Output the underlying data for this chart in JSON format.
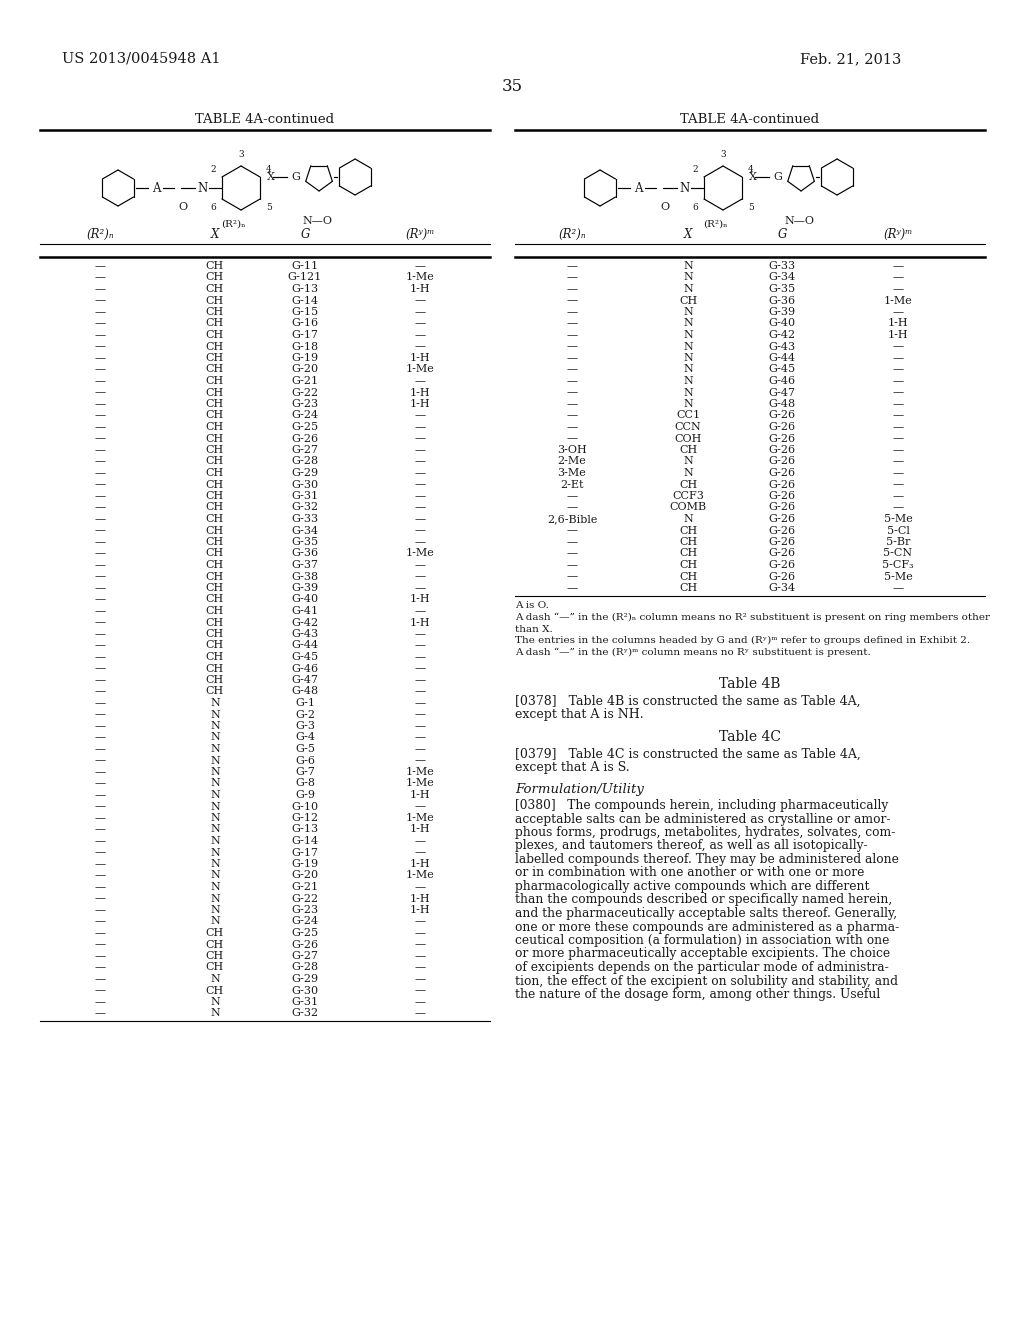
{
  "header_left": "US 2013/0045948 A1",
  "header_right": "Feb. 21, 2013",
  "page_number": "35",
  "table_title": "TABLE 4A-continued",
  "bg_color": "#ffffff",
  "text_color": "#1a1a1a",
  "left_table": {
    "col_headers": [
      "(R²)ₙ",
      "X",
      "G",
      "(Rʸ)ᵐ"
    ],
    "rows": [
      [
        "--",
        "CH",
        "G-11",
        "--"
      ],
      [
        "--",
        "CH",
        "G-121",
        "1-Me"
      ],
      [
        "--",
        "CH",
        "G-13",
        "1-H"
      ],
      [
        "--",
        "CH",
        "G-14",
        "--"
      ],
      [
        "--",
        "CH",
        "G-15",
        "--"
      ],
      [
        "--",
        "CH",
        "G-16",
        "--"
      ],
      [
        "--",
        "CH",
        "G-17",
        "--"
      ],
      [
        "--",
        "CH",
        "G-18",
        "--"
      ],
      [
        "--",
        "CH",
        "G-19",
        "1-H"
      ],
      [
        "--",
        "CH",
        "G-20",
        "1-Me"
      ],
      [
        "--",
        "CH",
        "G-21",
        "--"
      ],
      [
        "--",
        "CH",
        "G-22",
        "1-H"
      ],
      [
        "--",
        "CH",
        "G-23",
        "1-H"
      ],
      [
        "--",
        "CH",
        "G-24",
        "--"
      ],
      [
        "--",
        "CH",
        "G-25",
        "--"
      ],
      [
        "--",
        "CH",
        "G-26",
        "--"
      ],
      [
        "--",
        "CH",
        "G-27",
        "--"
      ],
      [
        "--",
        "CH",
        "G-28",
        "--"
      ],
      [
        "--",
        "CH",
        "G-29",
        "--"
      ],
      [
        "--",
        "CH",
        "G-30",
        "--"
      ],
      [
        "--",
        "CH",
        "G-31",
        "--"
      ],
      [
        "--",
        "CH",
        "G-32",
        "--"
      ],
      [
        "--",
        "CH",
        "G-33",
        "--"
      ],
      [
        "--",
        "CH",
        "G-34",
        "--"
      ],
      [
        "--",
        "CH",
        "G-35",
        "--"
      ],
      [
        "--",
        "CH",
        "G-36",
        "1-Me"
      ],
      [
        "--",
        "CH",
        "G-37",
        "--"
      ],
      [
        "--",
        "CH",
        "G-38",
        "--"
      ],
      [
        "--",
        "CH",
        "G-39",
        "--"
      ],
      [
        "--",
        "CH",
        "G-40",
        "1-H"
      ],
      [
        "--",
        "CH",
        "G-41",
        "--"
      ],
      [
        "--",
        "CH",
        "G-42",
        "1-H"
      ],
      [
        "--",
        "CH",
        "G-43",
        "--"
      ],
      [
        "--",
        "CH",
        "G-44",
        "--"
      ],
      [
        "--",
        "CH",
        "G-45",
        "--"
      ],
      [
        "--",
        "CH",
        "G-46",
        "--"
      ],
      [
        "--",
        "CH",
        "G-47",
        "--"
      ],
      [
        "--",
        "CH",
        "G-48",
        "--"
      ],
      [
        "--",
        "N",
        "G-1",
        "--"
      ],
      [
        "--",
        "N",
        "G-2",
        "--"
      ],
      [
        "--",
        "N",
        "G-3",
        "--"
      ],
      [
        "--",
        "N",
        "G-4",
        "--"
      ],
      [
        "--",
        "N",
        "G-5",
        "--"
      ],
      [
        "--",
        "N",
        "G-6",
        "--"
      ],
      [
        "--",
        "N",
        "G-7",
        "1-Me"
      ],
      [
        "--",
        "N",
        "G-8",
        "1-Me"
      ],
      [
        "--",
        "N",
        "G-9",
        "1-H"
      ],
      [
        "--",
        "N",
        "G-10",
        "--"
      ],
      [
        "--",
        "N",
        "G-12",
        "1-Me"
      ],
      [
        "--",
        "N",
        "G-13",
        "1-H"
      ],
      [
        "--",
        "N",
        "G-14",
        "--"
      ],
      [
        "--",
        "N",
        "G-17",
        "--"
      ],
      [
        "--",
        "N",
        "G-19",
        "1-H"
      ],
      [
        "--",
        "N",
        "G-20",
        "1-Me"
      ],
      [
        "--",
        "N",
        "G-21",
        "--"
      ],
      [
        "--",
        "N",
        "G-22",
        "1-H"
      ],
      [
        "--",
        "N",
        "G-23",
        "1-H"
      ],
      [
        "--",
        "N",
        "G-24",
        "--"
      ],
      [
        "--",
        "CH",
        "G-25",
        "--"
      ],
      [
        "--",
        "CH",
        "G-26",
        "--"
      ],
      [
        "--",
        "CH",
        "G-27",
        "--"
      ],
      [
        "--",
        "CH",
        "G-28",
        "--"
      ],
      [
        "--",
        "N",
        "G-29",
        "--"
      ],
      [
        "--",
        "CH",
        "G-30",
        "--"
      ],
      [
        "--",
        "N",
        "G-31",
        "--"
      ],
      [
        "--",
        "N",
        "G-32",
        "--"
      ]
    ]
  },
  "right_table": {
    "col_headers": [
      "(R²)ₙ",
      "X",
      "G",
      "(Rʸ)ᵐ"
    ],
    "rows": [
      [
        "--",
        "N",
        "G-33",
        "--"
      ],
      [
        "--",
        "N",
        "G-34",
        "--"
      ],
      [
        "--",
        "N",
        "G-35",
        "--"
      ],
      [
        "--",
        "CH",
        "G-36",
        "1-Me"
      ],
      [
        "--",
        "N",
        "G-39",
        "--"
      ],
      [
        "--",
        "N",
        "G-40",
        "1-H"
      ],
      [
        "--",
        "N",
        "G-42",
        "1-H"
      ],
      [
        "--",
        "N",
        "G-43",
        "--"
      ],
      [
        "--",
        "N",
        "G-44",
        "--"
      ],
      [
        "--",
        "N",
        "G-45",
        "--"
      ],
      [
        "--",
        "N",
        "G-46",
        "--"
      ],
      [
        "--",
        "N",
        "G-47",
        "--"
      ],
      [
        "--",
        "N",
        "G-48",
        "--"
      ],
      [
        "--",
        "CC1",
        "G-26",
        "--"
      ],
      [
        "--",
        "CCN",
        "G-26",
        "--"
      ],
      [
        "--",
        "COH",
        "G-26",
        "--"
      ],
      [
        "3-OH",
        "CH",
        "G-26",
        "--"
      ],
      [
        "2-Me",
        "N",
        "G-26",
        "--"
      ],
      [
        "3-Me",
        "N",
        "G-26",
        "--"
      ],
      [
        "2-Et",
        "CH",
        "G-26",
        "--"
      ],
      [
        "--",
        "CCF3",
        "G-26",
        "--"
      ],
      [
        "--",
        "COMB",
        "G-26",
        "--"
      ],
      [
        "2,6-Bible",
        "N",
        "G-26",
        "5-Me"
      ],
      [
        "--",
        "CH",
        "G-26",
        "5-Cl"
      ],
      [
        "--",
        "CH",
        "G-26",
        "5-Br"
      ],
      [
        "--",
        "CH",
        "G-26",
        "5-CN"
      ],
      [
        "--",
        "CH",
        "G-26",
        "5-CF₃"
      ],
      [
        "--",
        "CH",
        "G-26",
        "5-Me"
      ],
      [
        "--",
        "CH",
        "G-34",
        "--"
      ]
    ]
  },
  "footnote_lines": [
    "A is O.",
    "A dash “—” in the (R²)ₙ column means no R² substituent is present on ring members other",
    "than X.",
    "The entries in the columns headed by G and (Rʸ)ᵐ refer to groups defined in Exhibit 2.",
    "A dash “—” in the (Rʸ)ᵐ column means no Rʸ substituent is present."
  ],
  "table4b_title": "Table 4B",
  "table4b_line1": "[0378]   Table 4B is constructed the same as Table 4A,",
  "table4b_line2": "except that A is NH.",
  "table4c_title": "Table 4C",
  "table4c_line1": "[0379]   Table 4C is constructed the same as Table 4A,",
  "table4c_line2": "except that A is S.",
  "formulation_title": "Formulation/Utility",
  "formulation_para": "[0380]   The compounds herein, including pharmaceutically acceptable salts can be administered as crystalline or amor-phous forms, prodrugs, metabolites, hydrates, solvates, com-plexes, and tautomers thereof, as well as all isotopically-labelled compounds thereof. They may be administered alone or in combination with one another or with one or more pharmacologically active compounds which are different than the compounds described or specifically named herein, and the pharmaceutically acceptable salts thereof. Generally, one or more these compounds are administered as a pharma-ceutical composition (a formulation) in association with one or more pharmaceutically acceptable excipients. The choice of excipients depends on the particular mode of administra-tion, the effect of the excipient on solubility and stability, and the nature of the dosage form, among other things. Useful"
}
